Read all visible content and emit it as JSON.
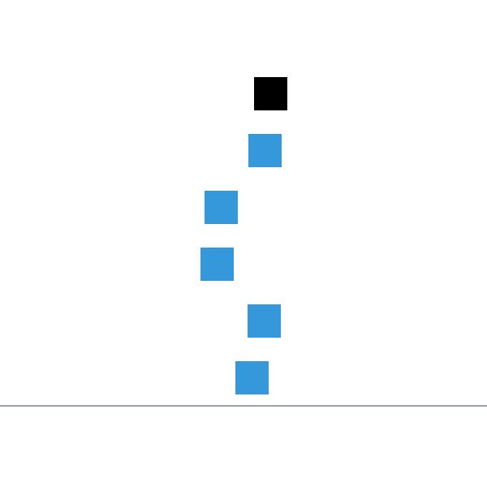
{
  "colors": {
    "background": "#ffffff",
    "active_block": "#000000",
    "stacked_block": "#3498db",
    "ground_line": "#95a5a6"
  },
  "blocks": [
    {
      "state": "active"
    },
    {
      "state": "stacked"
    },
    {
      "state": "stacked"
    },
    {
      "state": "stacked"
    },
    {
      "state": "stacked"
    },
    {
      "state": "stacked"
    }
  ]
}
